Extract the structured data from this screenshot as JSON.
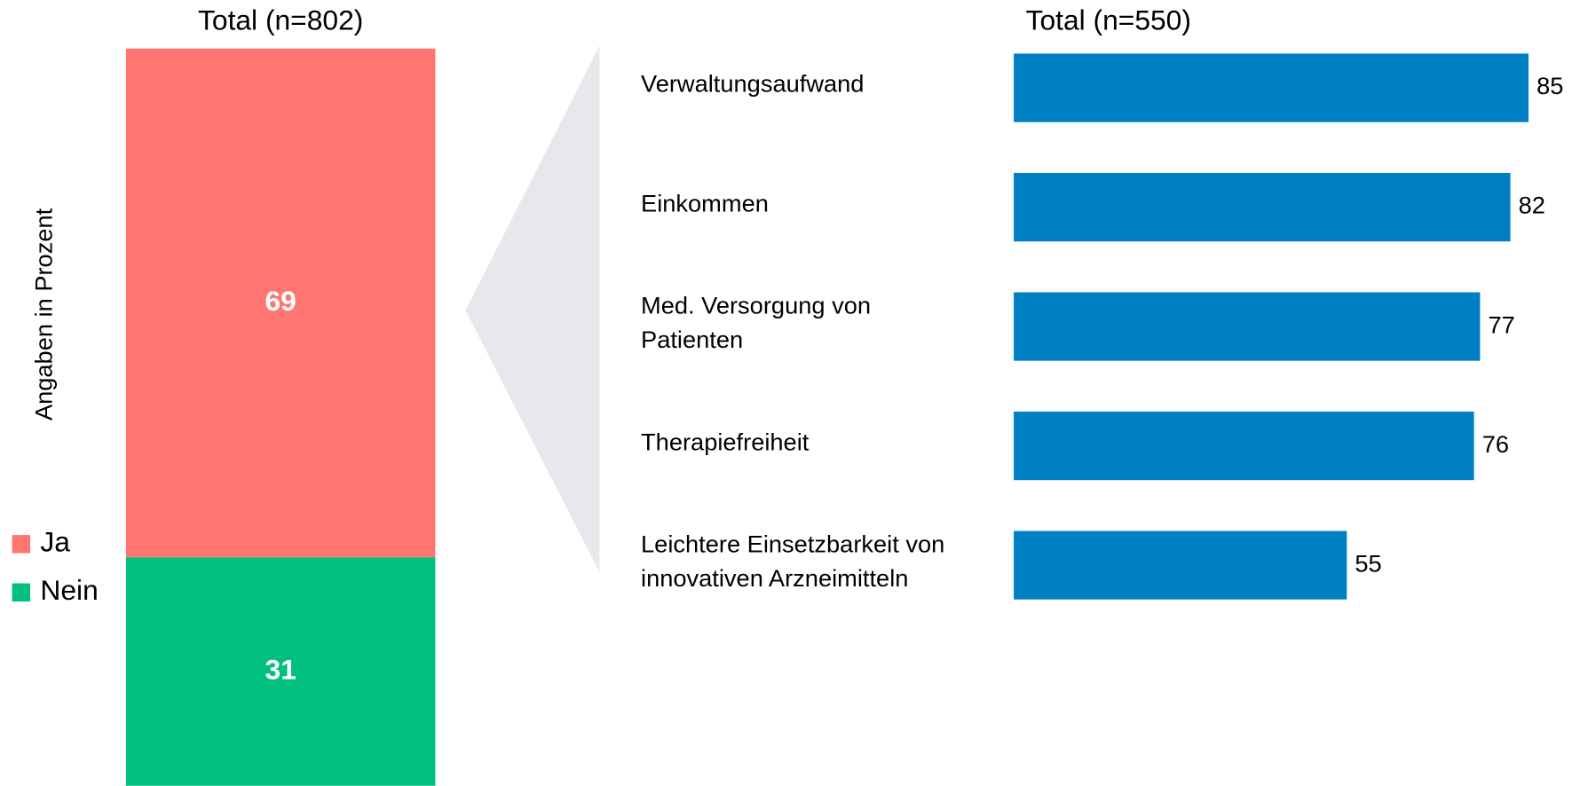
{
  "chart_data": [
    {
      "type": "stacked-bar",
      "categories": [
        "Total (n=802)"
      ],
      "ylabel": "Angaben in Prozent",
      "ylim": [
        0,
        100
      ],
      "series": [
        {
          "name": "Ja",
          "color": "#ff7670",
          "values": [
            69
          ]
        },
        {
          "name": "Nein",
          "color": "#00bf7f",
          "values": [
            31
          ]
        }
      ]
    },
    {
      "type": "hbar",
      "title": "Total (n=550)",
      "categories": [
        "Verwaltungsaufwand",
        "Einkommen",
        "Med. Versorgung von\nPatienten",
        "Therapiefreiheit",
        "Leichtere Einsetzbarkeit von\ninnovativen Arzneimitteln"
      ],
      "values": [
        85,
        82,
        77,
        76,
        55
      ],
      "color": "#0080c4",
      "xlim": [
        0,
        100
      ]
    }
  ]
}
